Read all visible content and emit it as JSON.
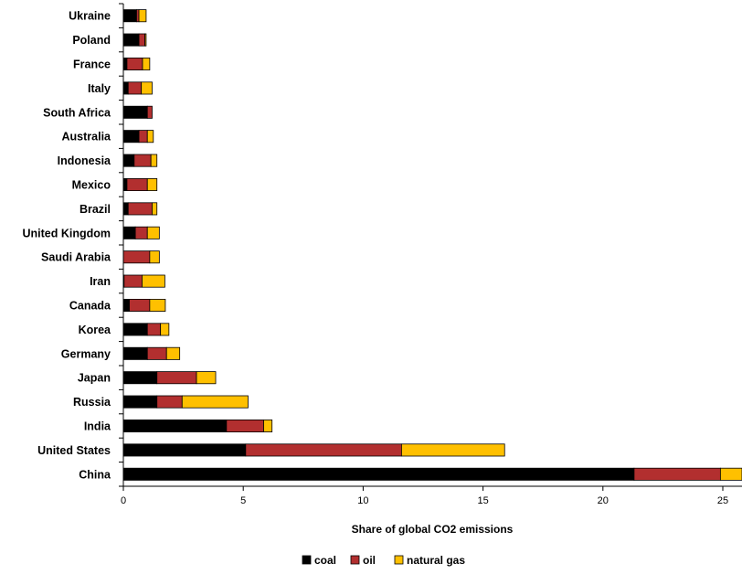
{
  "chart_data": {
    "type": "bar",
    "orientation": "horizontal",
    "stacked": true,
    "categories": [
      "China",
      "United States",
      "India",
      "Russia",
      "Japan",
      "Germany",
      "Korea",
      "Canada",
      "Iran",
      "Saudi Arabia",
      "United Kingdom",
      "Brazil",
      "Mexico",
      "Indonesia",
      "Australia",
      "South Africa",
      "Italy",
      "France",
      "Poland",
      "Ukraine"
    ],
    "series": [
      {
        "name": "coal",
        "color": "#000000",
        "values": [
          21.3,
          5.1,
          4.3,
          1.4,
          1.4,
          1.0,
          1.0,
          0.25,
          0.03,
          0.0,
          0.5,
          0.2,
          0.15,
          0.45,
          0.65,
          1.0,
          0.2,
          0.15,
          0.65,
          0.55
        ]
      },
      {
        "name": "oil",
        "color": "#b22f2f",
        "values": [
          3.6,
          6.5,
          1.55,
          1.05,
          1.65,
          0.8,
          0.55,
          0.85,
          0.75,
          1.1,
          0.5,
          1.0,
          0.85,
          0.7,
          0.35,
          0.2,
          0.55,
          0.65,
          0.25,
          0.1
        ]
      },
      {
        "name": "natural gas",
        "color": "#ffc000",
        "values": [
          0.9,
          4.3,
          0.35,
          2.75,
          0.8,
          0.55,
          0.35,
          0.65,
          0.95,
          0.4,
          0.5,
          0.2,
          0.4,
          0.25,
          0.25,
          0.0,
          0.45,
          0.3,
          0.05,
          0.3
        ]
      }
    ],
    "xlabel": "Share of global CO2 emissions",
    "ylabel": "",
    "xlim": [
      0,
      25.8
    ],
    "xticks": [
      0,
      5,
      10,
      15,
      20,
      25
    ],
    "grid": false,
    "legend_position": "bottom"
  }
}
